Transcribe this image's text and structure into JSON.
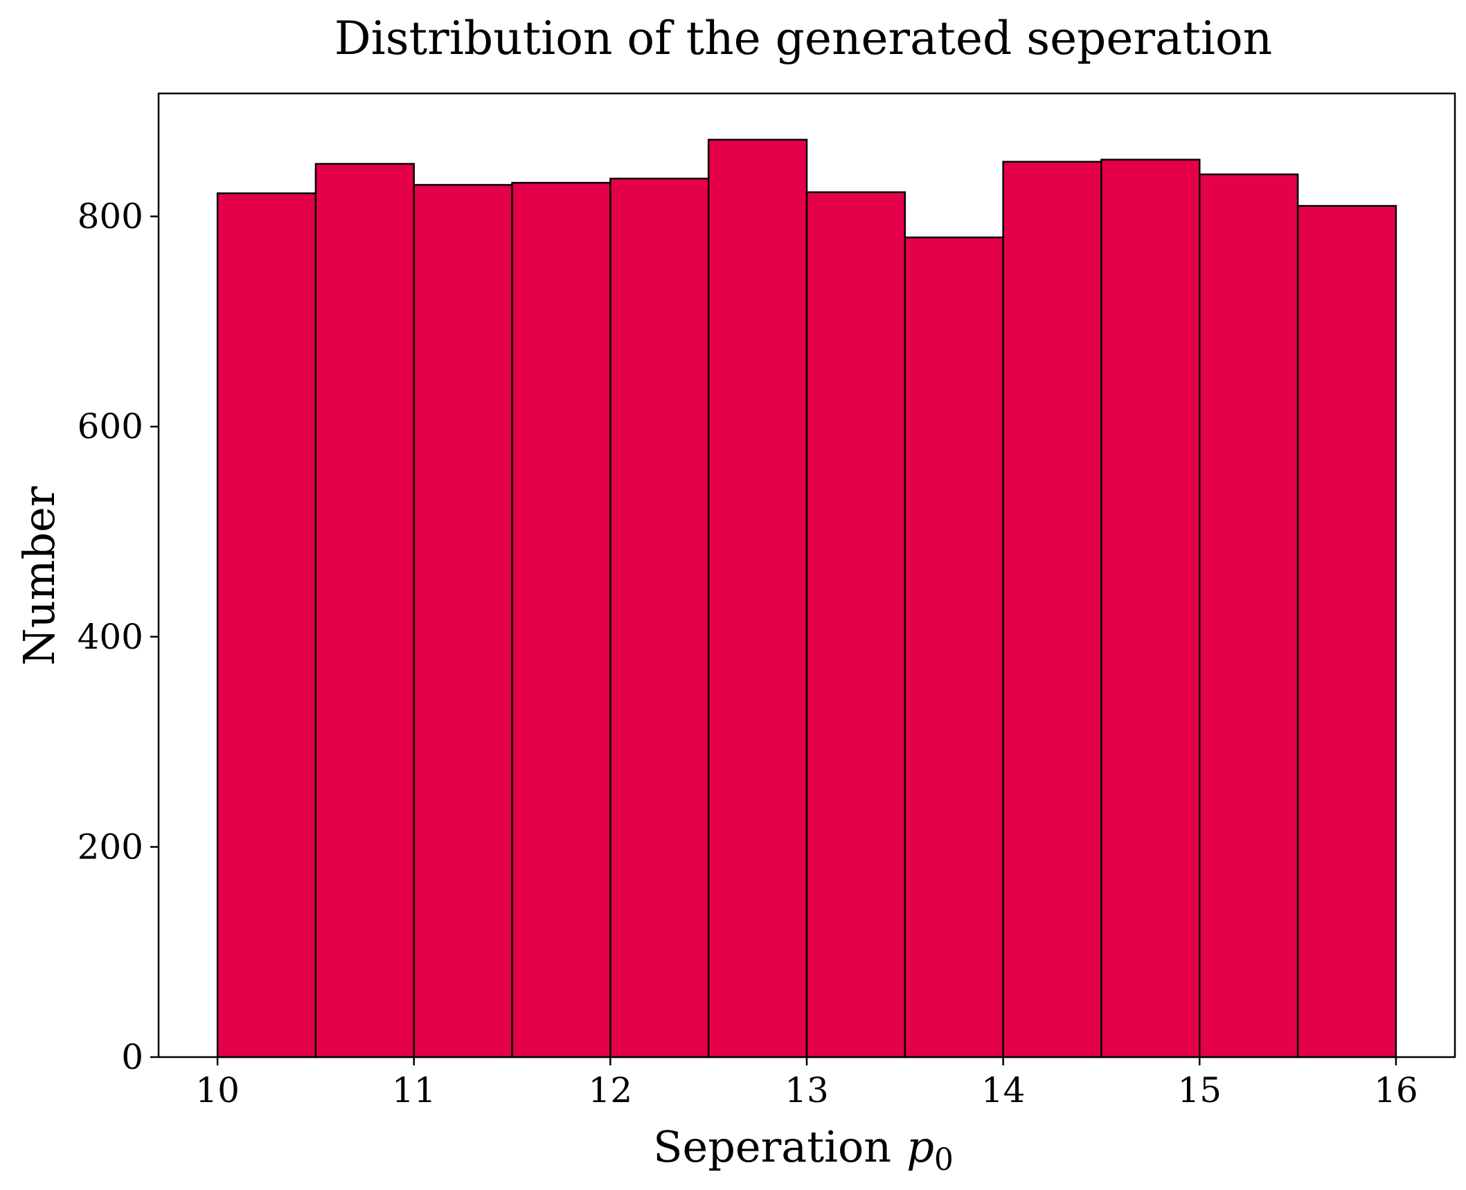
{
  "chart_data": {
    "type": "bar",
    "title": "Distribution of the generated seperation",
    "xlabel": "Seperation",
    "xlabel_symbol": "p",
    "xlabel_subscript": "0",
    "ylabel": "Number",
    "bin_edges": [
      10,
      10.5,
      11,
      11.5,
      12,
      12.5,
      13,
      13.5,
      14,
      14.5,
      15,
      15.5,
      16
    ],
    "values": [
      822,
      850,
      830,
      832,
      836,
      873,
      823,
      780,
      852,
      854,
      840,
      810
    ],
    "xlim": [
      9.7,
      16.3
    ],
    "ylim": [
      0,
      917
    ],
    "xticks": [
      "10",
      "11",
      "12",
      "13",
      "14",
      "15",
      "16"
    ],
    "yticks": [
      "0",
      "200",
      "400",
      "600",
      "800"
    ],
    "grid": false,
    "bar_color": "#e5004a",
    "edge_color": "#000000"
  }
}
